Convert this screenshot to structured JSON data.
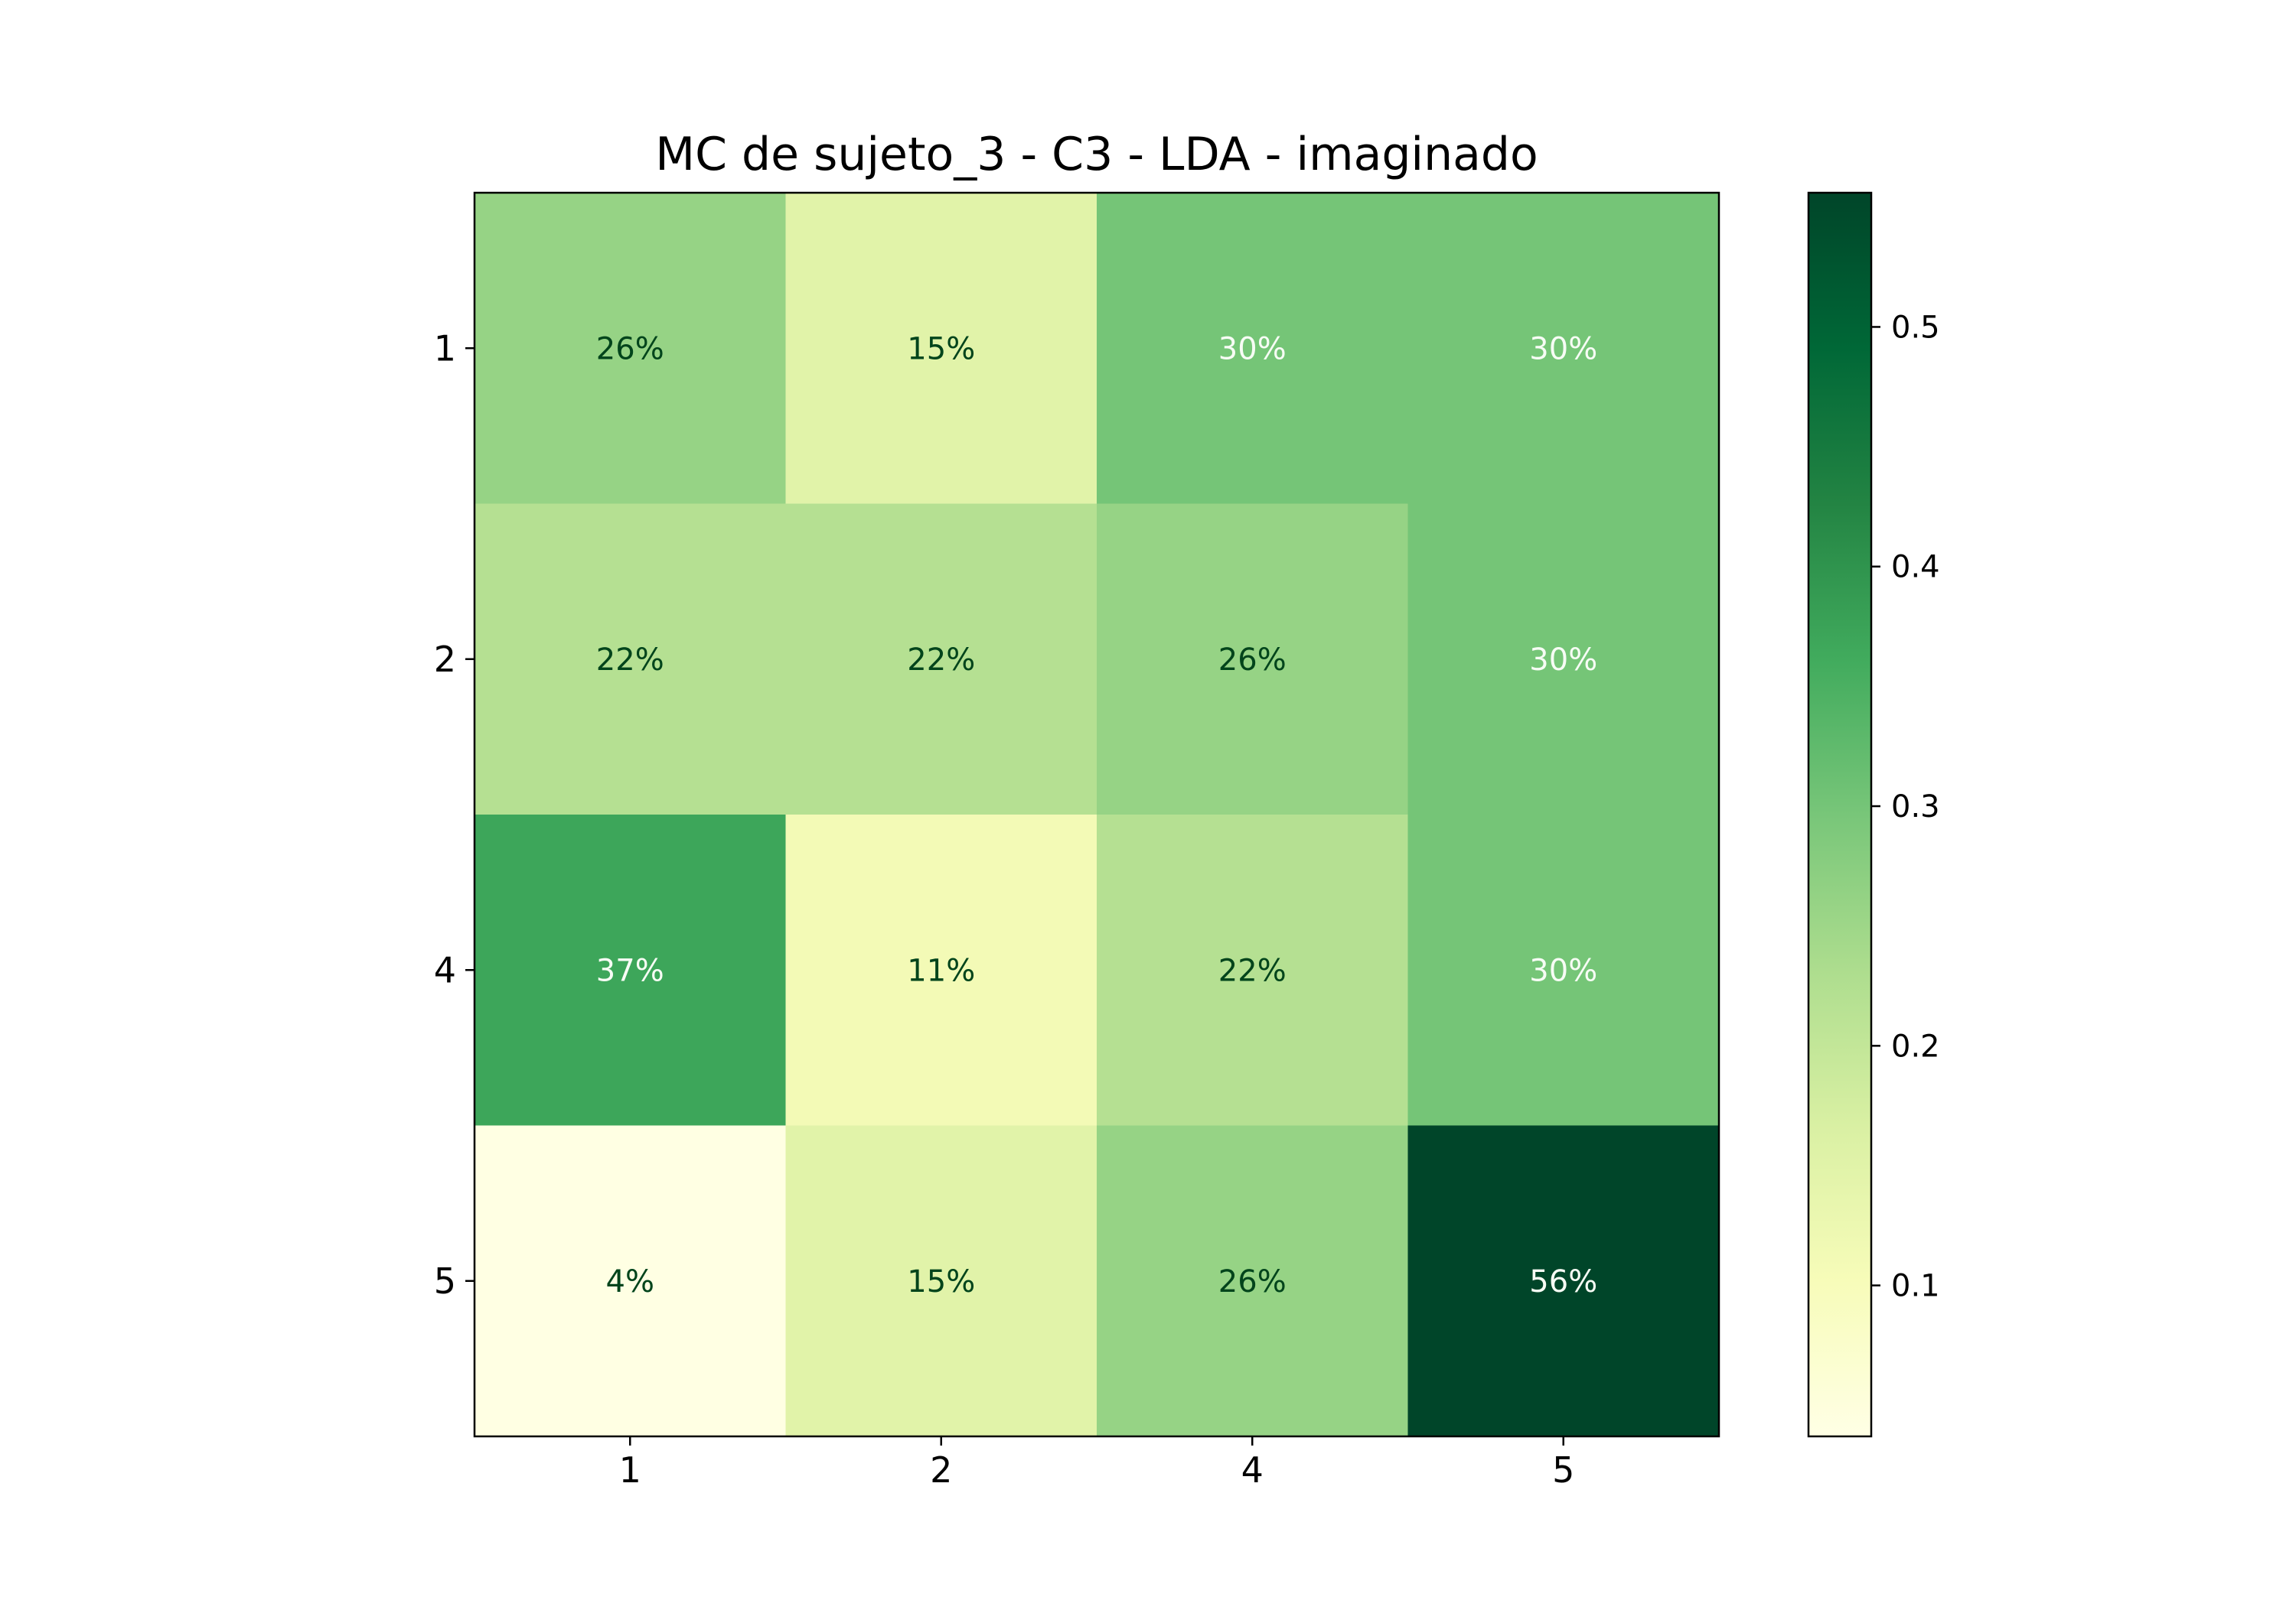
{
  "chart_data": {
    "type": "heatmap",
    "title": "MC de sujeto_3 - C3 - LDA - imaginado",
    "xlabel": "",
    "ylabel": "",
    "x_categories": [
      "1",
      "2",
      "4",
      "5"
    ],
    "y_categories": [
      "1",
      "2",
      "4",
      "5"
    ],
    "values": [
      [
        0.26,
        0.15,
        0.3,
        0.3
      ],
      [
        0.22,
        0.22,
        0.26,
        0.3
      ],
      [
        0.37,
        0.11,
        0.22,
        0.3
      ],
      [
        0.04,
        0.15,
        0.26,
        0.56
      ]
    ],
    "cell_labels": [
      [
        "26%",
        "15%",
        "30%",
        "30%"
      ],
      [
        "22%",
        "22%",
        "26%",
        "30%"
      ],
      [
        "37%",
        "11%",
        "22%",
        "30%"
      ],
      [
        "4%",
        "15%",
        "26%",
        "56%"
      ]
    ],
    "colorbar": {
      "range": [
        0.037,
        0.556
      ],
      "ticks": [
        0.1,
        0.2,
        0.3,
        0.4,
        0.5
      ],
      "tick_labels": [
        "0.1",
        "0.2",
        "0.3",
        "0.4",
        "0.5"
      ]
    },
    "colormap": "YlGn",
    "colormap_stops": [
      "#ffffe5",
      "#f7fcb9",
      "#d9f0a3",
      "#addd8e",
      "#78c679",
      "#41ab5d",
      "#238443",
      "#006837",
      "#004529"
    ],
    "text_color_dark": "#00441b",
    "text_color_light": "#f7fcf5",
    "grid": false
  }
}
